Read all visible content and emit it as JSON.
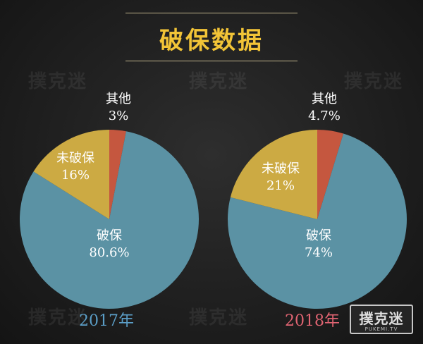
{
  "title": "破保数据",
  "watermark_text": "撲克迷",
  "brand": {
    "name": "撲克迷",
    "sub": "PUKEMI.TV"
  },
  "colors": {
    "title": "#f2c437",
    "breaking": "#5b92a4",
    "not_breaking": "#ccaa43",
    "other": "#c5573f",
    "year_2017": "#5b9ec7",
    "year_2018": "#e06472"
  },
  "chart_data": [
    {
      "type": "pie",
      "year_label": "2017年",
      "slices": [
        {
          "name": "破保",
          "value": 80.6,
          "label": "80.6%"
        },
        {
          "name": "未破保",
          "value": 16,
          "label": "16%"
        },
        {
          "name": "其他",
          "value": 3,
          "label": "3%"
        }
      ]
    },
    {
      "type": "pie",
      "year_label": "2018年",
      "slices": [
        {
          "name": "破保",
          "value": 74,
          "label": "74%"
        },
        {
          "name": "未破保",
          "value": 21,
          "label": "21%"
        },
        {
          "name": "其他",
          "value": 4.7,
          "label": "4.7%"
        }
      ]
    }
  ]
}
